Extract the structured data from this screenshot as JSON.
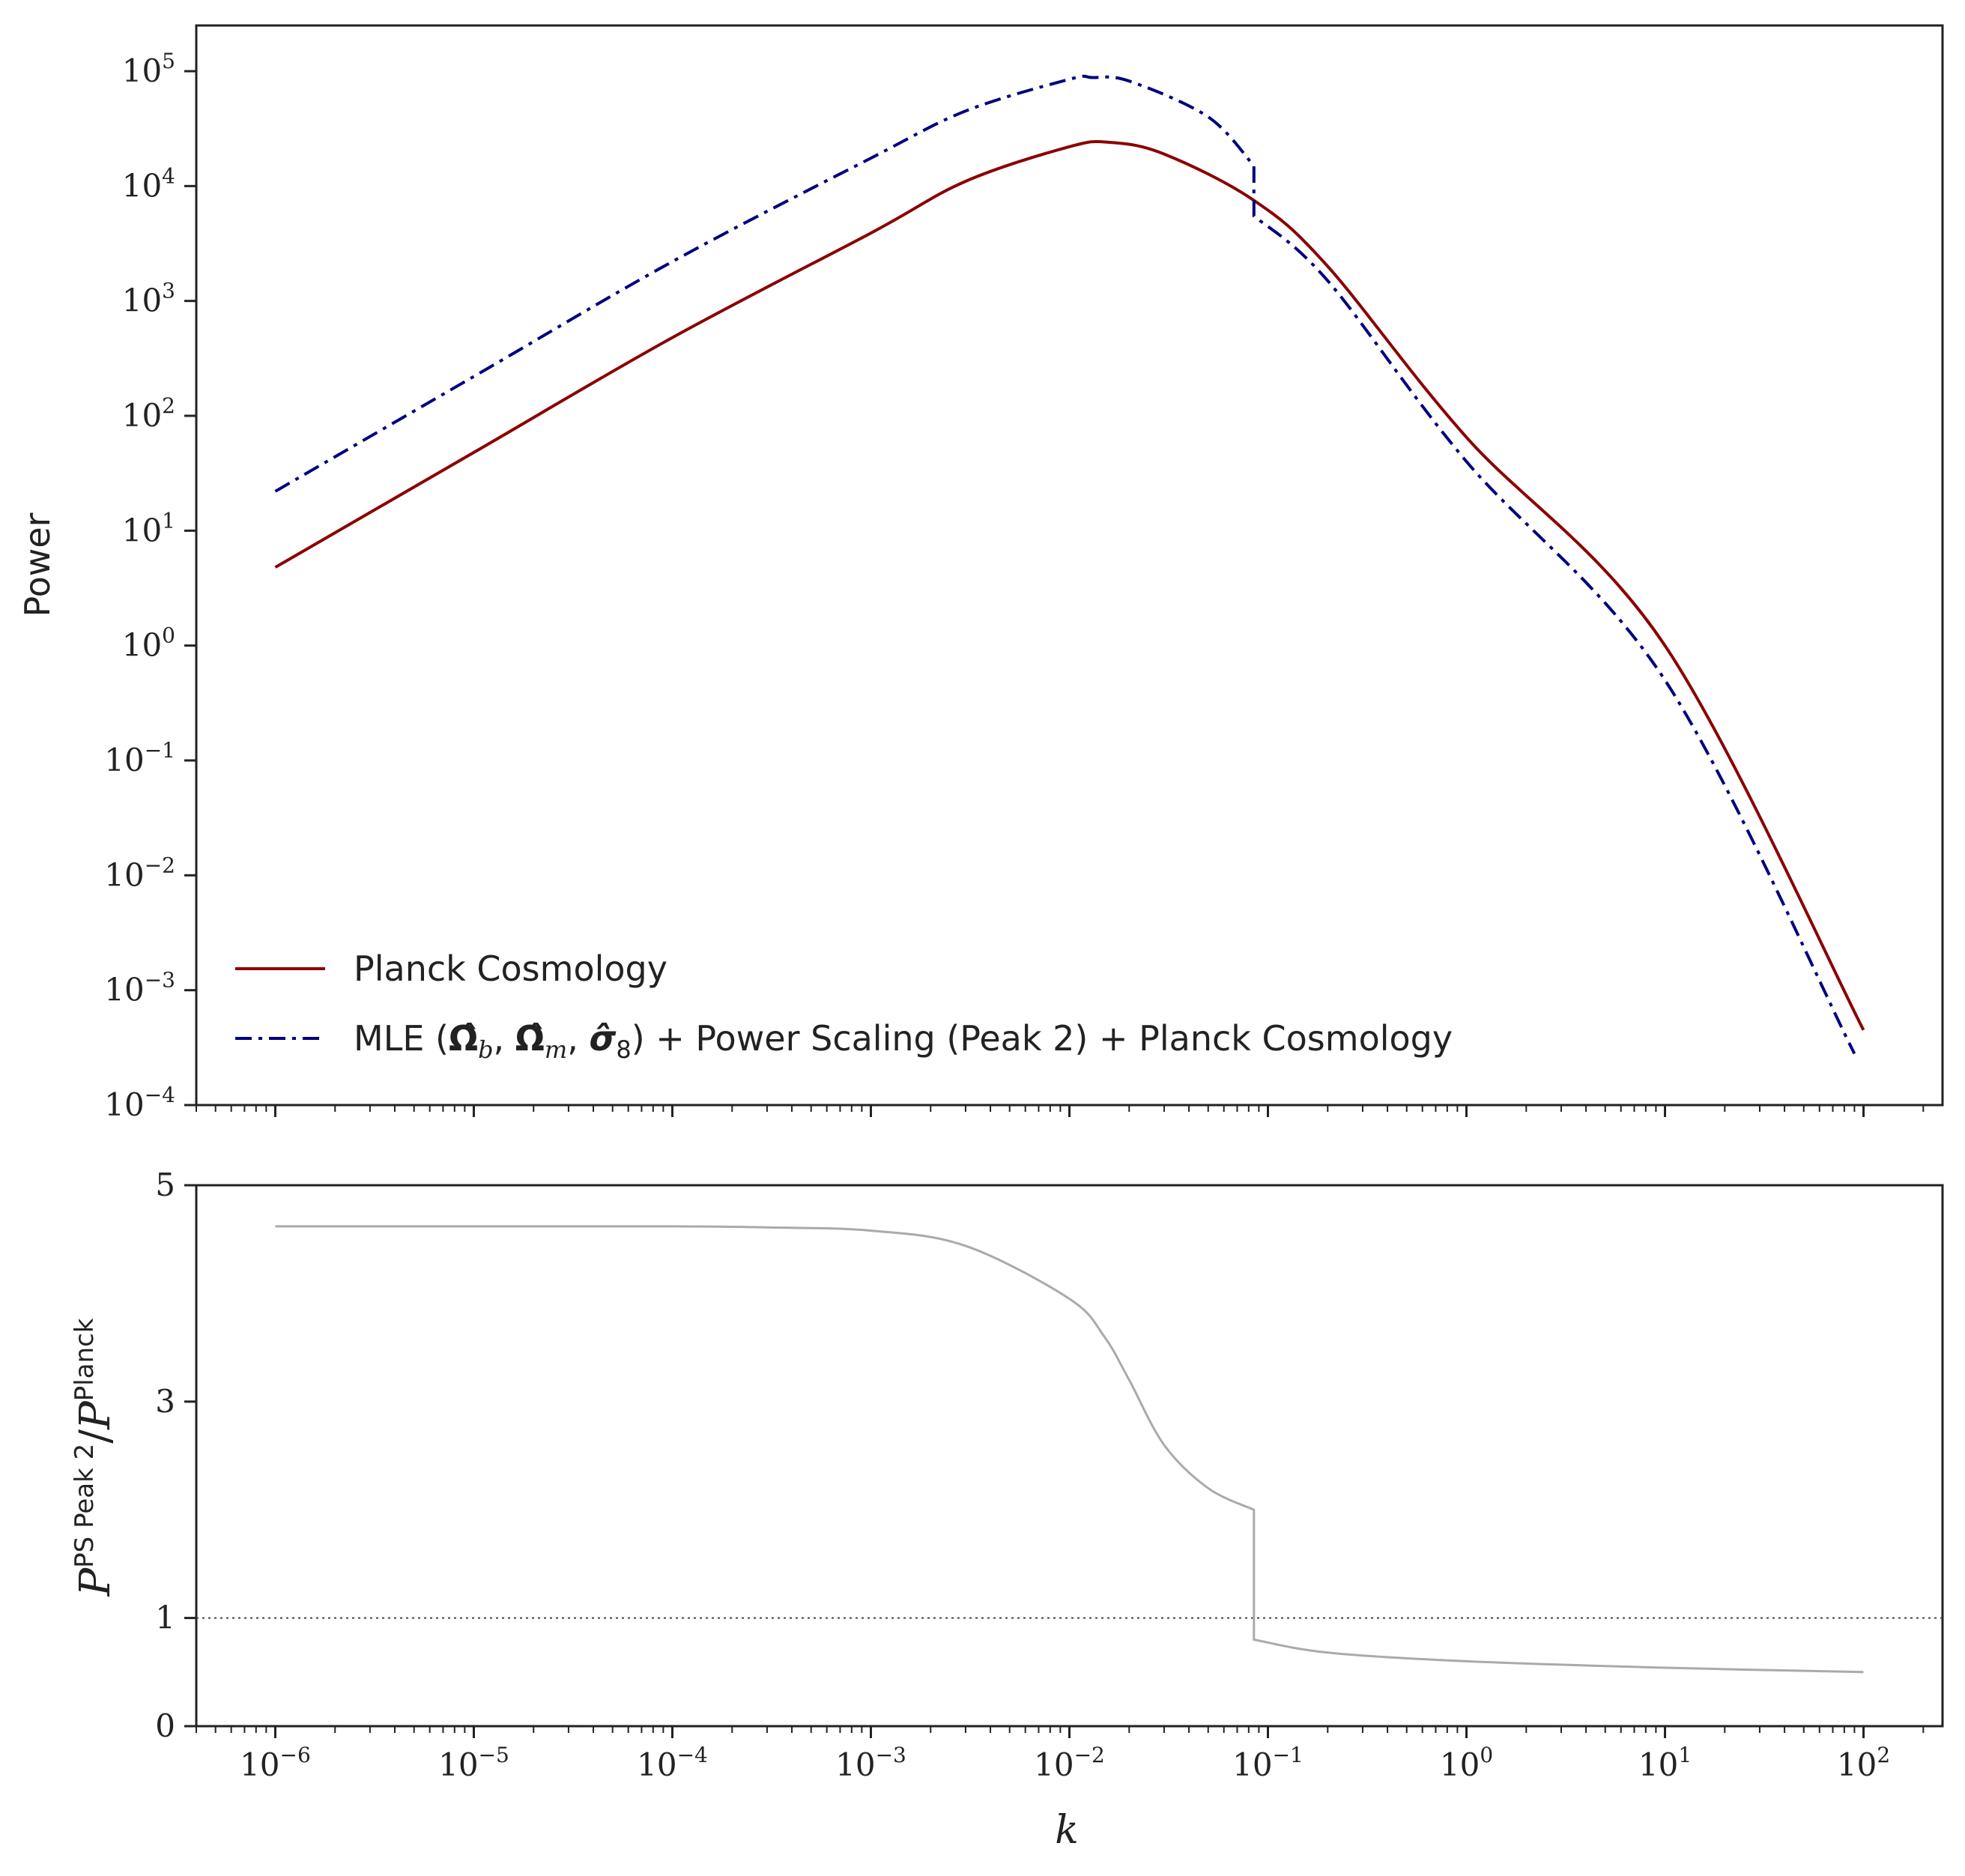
{
  "chart_data": [
    {
      "type": "line",
      "panel": "top",
      "ylabel": "Power",
      "xscale": "log",
      "yscale": "log",
      "xlim": [
        4e-07,
        250
      ],
      "ylim": [
        0.0001,
        250000
      ],
      "grid": false,
      "legend_position": "lower-left",
      "x_ticks": [
        {
          "base": "10",
          "exp": "−6",
          "value": 1e-06
        },
        {
          "base": "10",
          "exp": "−5",
          "value": 1e-05
        },
        {
          "base": "10",
          "exp": "−4",
          "value": 0.0001
        },
        {
          "base": "10",
          "exp": "−3",
          "value": 0.001
        },
        {
          "base": "10",
          "exp": "−2",
          "value": 0.01
        },
        {
          "base": "10",
          "exp": "−1",
          "value": 0.1
        },
        {
          "base": "10",
          "exp": "0",
          "value": 1
        },
        {
          "base": "10",
          "exp": "1",
          "value": 10
        },
        {
          "base": "10",
          "exp": "2",
          "value": 100
        }
      ],
      "y_ticks": [
        {
          "base": "10",
          "exp": "5",
          "value": 100000.0
        },
        {
          "base": "10",
          "exp": "4",
          "value": 10000.0
        },
        {
          "base": "10",
          "exp": "3",
          "value": 1000.0
        },
        {
          "base": "10",
          "exp": "2",
          "value": 100.0
        },
        {
          "base": "10",
          "exp": "1",
          "value": 10
        },
        {
          "base": "10",
          "exp": "0",
          "value": 1
        },
        {
          "base": "10",
          "exp": "−1",
          "value": 0.1
        },
        {
          "base": "10",
          "exp": "−2",
          "value": 0.01
        },
        {
          "base": "10",
          "exp": "−3",
          "value": 0.001
        },
        {
          "base": "10",
          "exp": "−4",
          "value": 0.0001
        }
      ],
      "series": [
        {
          "name": "Planck Cosmology",
          "color": "#8b0000",
          "style": "solid",
          "x": [
            1e-06,
            1e-05,
            0.0001,
            0.001,
            0.003,
            0.01,
            0.016,
            0.03,
            0.085,
            0.2,
            1,
            10,
            100
          ],
          "y": [
            4.8,
            48,
            480,
            3900,
            11000,
            22000,
            24000,
            19000,
            7500,
            2000,
            65,
            1.0,
            0.00045
          ]
        },
        {
          "name_parts": {
            "prefix": "MLE (",
            "sym1": "Ω̂",
            "sub1": "b",
            "sep1": ", ",
            "sym2": "Ω̂",
            "sub2": "m",
            "sep2": ", ",
            "sym3": "σ̂",
            "sub3": "8",
            "suffix": ") + Power Scaling (Peak 2) + Planck Cosmology"
          },
          "color": "#000080",
          "style": "dash-dot",
          "x": [
            1e-06,
            1e-05,
            0.0001,
            0.001,
            0.003,
            0.01,
            0.013,
            0.02,
            0.05,
            0.085,
            0.085,
            0.2,
            1,
            10,
            90
          ],
          "y": [
            22,
            220,
            2200,
            17500,
            45000,
            85000,
            88000,
            82000,
            40000,
            15000,
            5500,
            1500,
            40,
            0.5,
            0.00028
          ]
        }
      ]
    },
    {
      "type": "line",
      "panel": "bottom",
      "xlabel": "k",
      "ylabel_parts": {
        "P": "P",
        "num_sup": "PS Peak 2",
        "slash": "/",
        "den_sup": "Planck"
      },
      "xscale": "log",
      "yscale": "linear",
      "xlim": [
        4e-07,
        250
      ],
      "ylim": [
        0,
        5
      ],
      "grid": false,
      "y_ticks": [
        "0",
        "1",
        "3",
        "5"
      ],
      "reference_line": {
        "y": 1,
        "style": "dotted",
        "color": "#444444"
      },
      "series": [
        {
          "color": "#aaaaaa",
          "style": "solid",
          "x": [
            1e-06,
            1e-05,
            0.0001,
            0.0003,
            0.001,
            0.003,
            0.01,
            0.015,
            0.02,
            0.03,
            0.05,
            0.085,
            0.085,
            0.2,
            1,
            10,
            100
          ],
          "y": [
            4.62,
            4.62,
            4.62,
            4.61,
            4.58,
            4.44,
            3.95,
            3.6,
            3.2,
            2.6,
            2.2,
            2.0,
            0.8,
            0.68,
            0.6,
            0.54,
            0.5
          ]
        }
      ]
    }
  ]
}
